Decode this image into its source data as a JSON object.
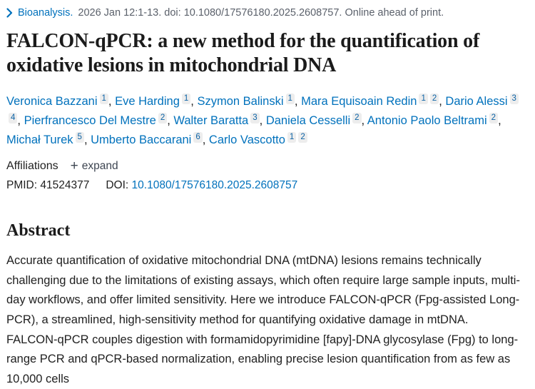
{
  "colors": {
    "link_blue": "#0071bc",
    "text_dark": "#212121",
    "muted_gray": "#5b616b",
    "sup_chip_bg": "#ededed"
  },
  "citation": {
    "chevron_icon": "chevron-right-icon",
    "journal": "Bioanalysis.",
    "meta": "2026 Jan 12:1-13. doi: 10.1080/17576180.2025.2608757. Online ahead of print."
  },
  "title": "FALCON-qPCR: a new method for the quantification of oxidative lesions in mitochondrial DNA",
  "authors": [
    {
      "name": "Veronica Bazzani",
      "affiliations": [
        "1"
      ]
    },
    {
      "name": "Eve Harding",
      "affiliations": [
        "1"
      ]
    },
    {
      "name": "Szymon Balinski",
      "affiliations": [
        "1"
      ]
    },
    {
      "name": "Mara Equisoain Redin",
      "affiliations": [
        "1",
        "2"
      ]
    },
    {
      "name": "Dario Alessi",
      "affiliations": [
        "3",
        "4"
      ]
    },
    {
      "name": "Pierfrancesco Del Mestre",
      "affiliations": [
        "2"
      ]
    },
    {
      "name": "Walter Baratta",
      "affiliations": [
        "3"
      ]
    },
    {
      "name": "Daniela Cesselli",
      "affiliations": [
        "2"
      ]
    },
    {
      "name": "Antonio Paolo Beltrami",
      "affiliations": [
        "2"
      ]
    },
    {
      "name": "Michał Turek",
      "affiliations": [
        "5"
      ]
    },
    {
      "name": "Umberto Baccarani",
      "affiliations": [
        "6"
      ]
    },
    {
      "name": "Carlo Vascotto",
      "affiliations": [
        "1",
        "2"
      ]
    }
  ],
  "affiliations_row": {
    "label": "Affiliations",
    "plus_icon": "+",
    "expand_label": "expand"
  },
  "ids": {
    "pmid_label": "PMID:",
    "pmid": "41524377",
    "doi_label": "DOI:",
    "doi": "10.1080/17576180.2025.2608757"
  },
  "abstract": {
    "heading": "Abstract",
    "text": "Accurate quantification of oxidative mitochondrial DNA (mtDNA) lesions remains technically challenging due to the limitations of existing assays, which often require large sample inputs, multi-day workflows, and offer limited sensitivity. Here we introduce FALCON-qPCR (Fpg-assisted Long-PCR), a streamlined, high-sensitivity method for quantifying oxidative damage in mtDNA. FALCON-qPCR couples digestion with formamidopyrimidine [fapy]-DNA glycosylase (Fpg) to long-range PCR and qPCR-based normalization, enabling precise lesion quantification from as few as 10,000 cells"
  }
}
